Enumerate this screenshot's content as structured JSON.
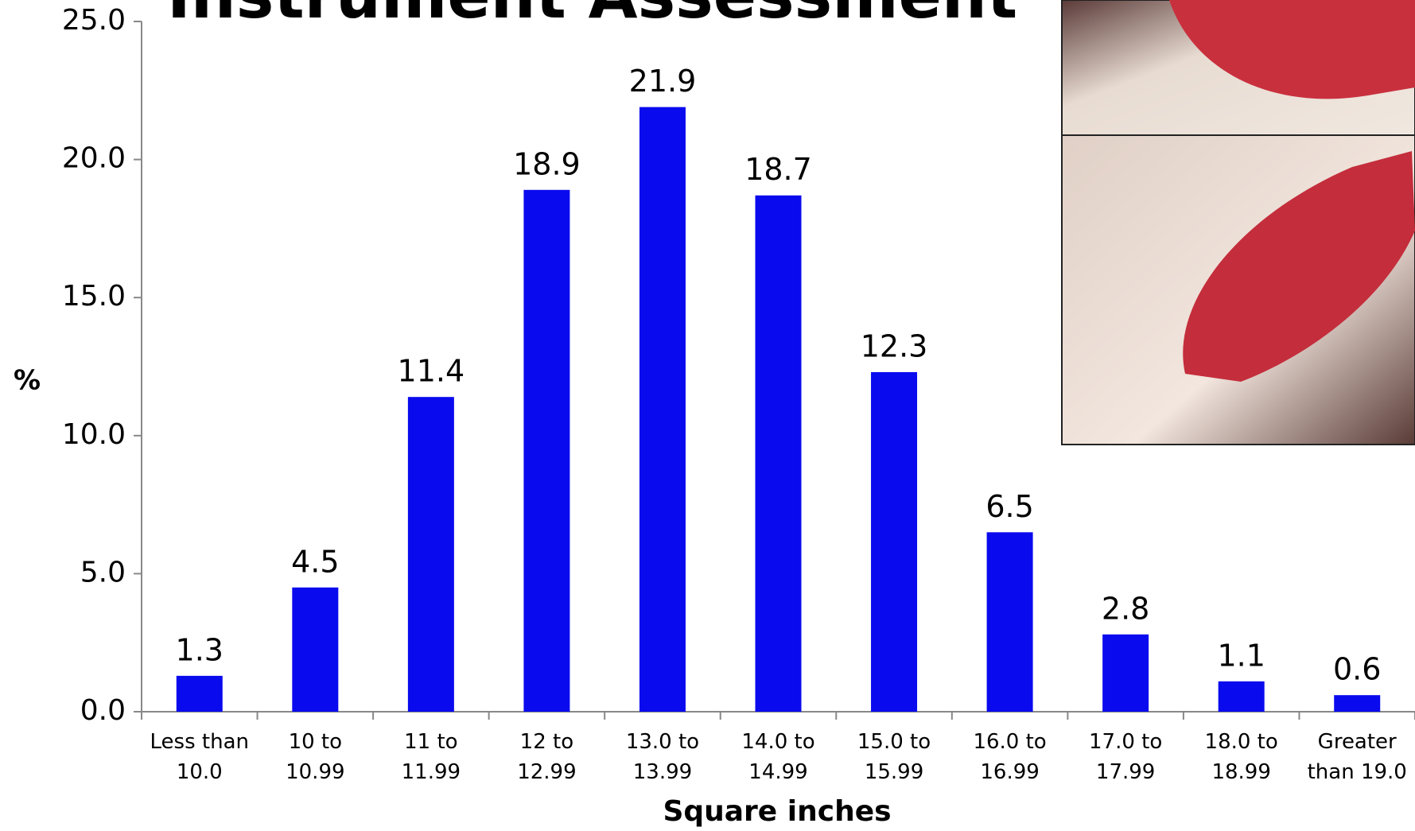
{
  "chart_data": {
    "type": "bar",
    "title": "Instrument Assessment",
    "y_label": "%",
    "x_label": "Square inches",
    "categories": [
      "Less than 10.0",
      "10 to 10.99",
      "11 to 11.99",
      "12 to 12.99",
      "13.0 to 13.99",
      "14.0 to 14.99",
      "15.0 to 15.99",
      "16.0 to 16.99",
      "17.0 to 17.99",
      "18.0 to 18.99",
      "Greater than 19.0"
    ],
    "values": [
      1.3,
      4.5,
      11.4,
      18.9,
      21.9,
      18.7,
      12.3,
      6.5,
      2.8,
      1.1,
      0.6
    ],
    "color": "#0a0aee",
    "ylim": [
      0,
      25
    ],
    "yticks": [
      {
        "value": 0,
        "label": "0.0"
      },
      {
        "value": 5,
        "label": "5.0"
      },
      {
        "value": 10,
        "label": "10.0"
      },
      {
        "value": 15,
        "label": "15.0"
      },
      {
        "value": 20,
        "label": "20.0"
      },
      {
        "value": 25,
        "label": "25.0"
      }
    ]
  }
}
